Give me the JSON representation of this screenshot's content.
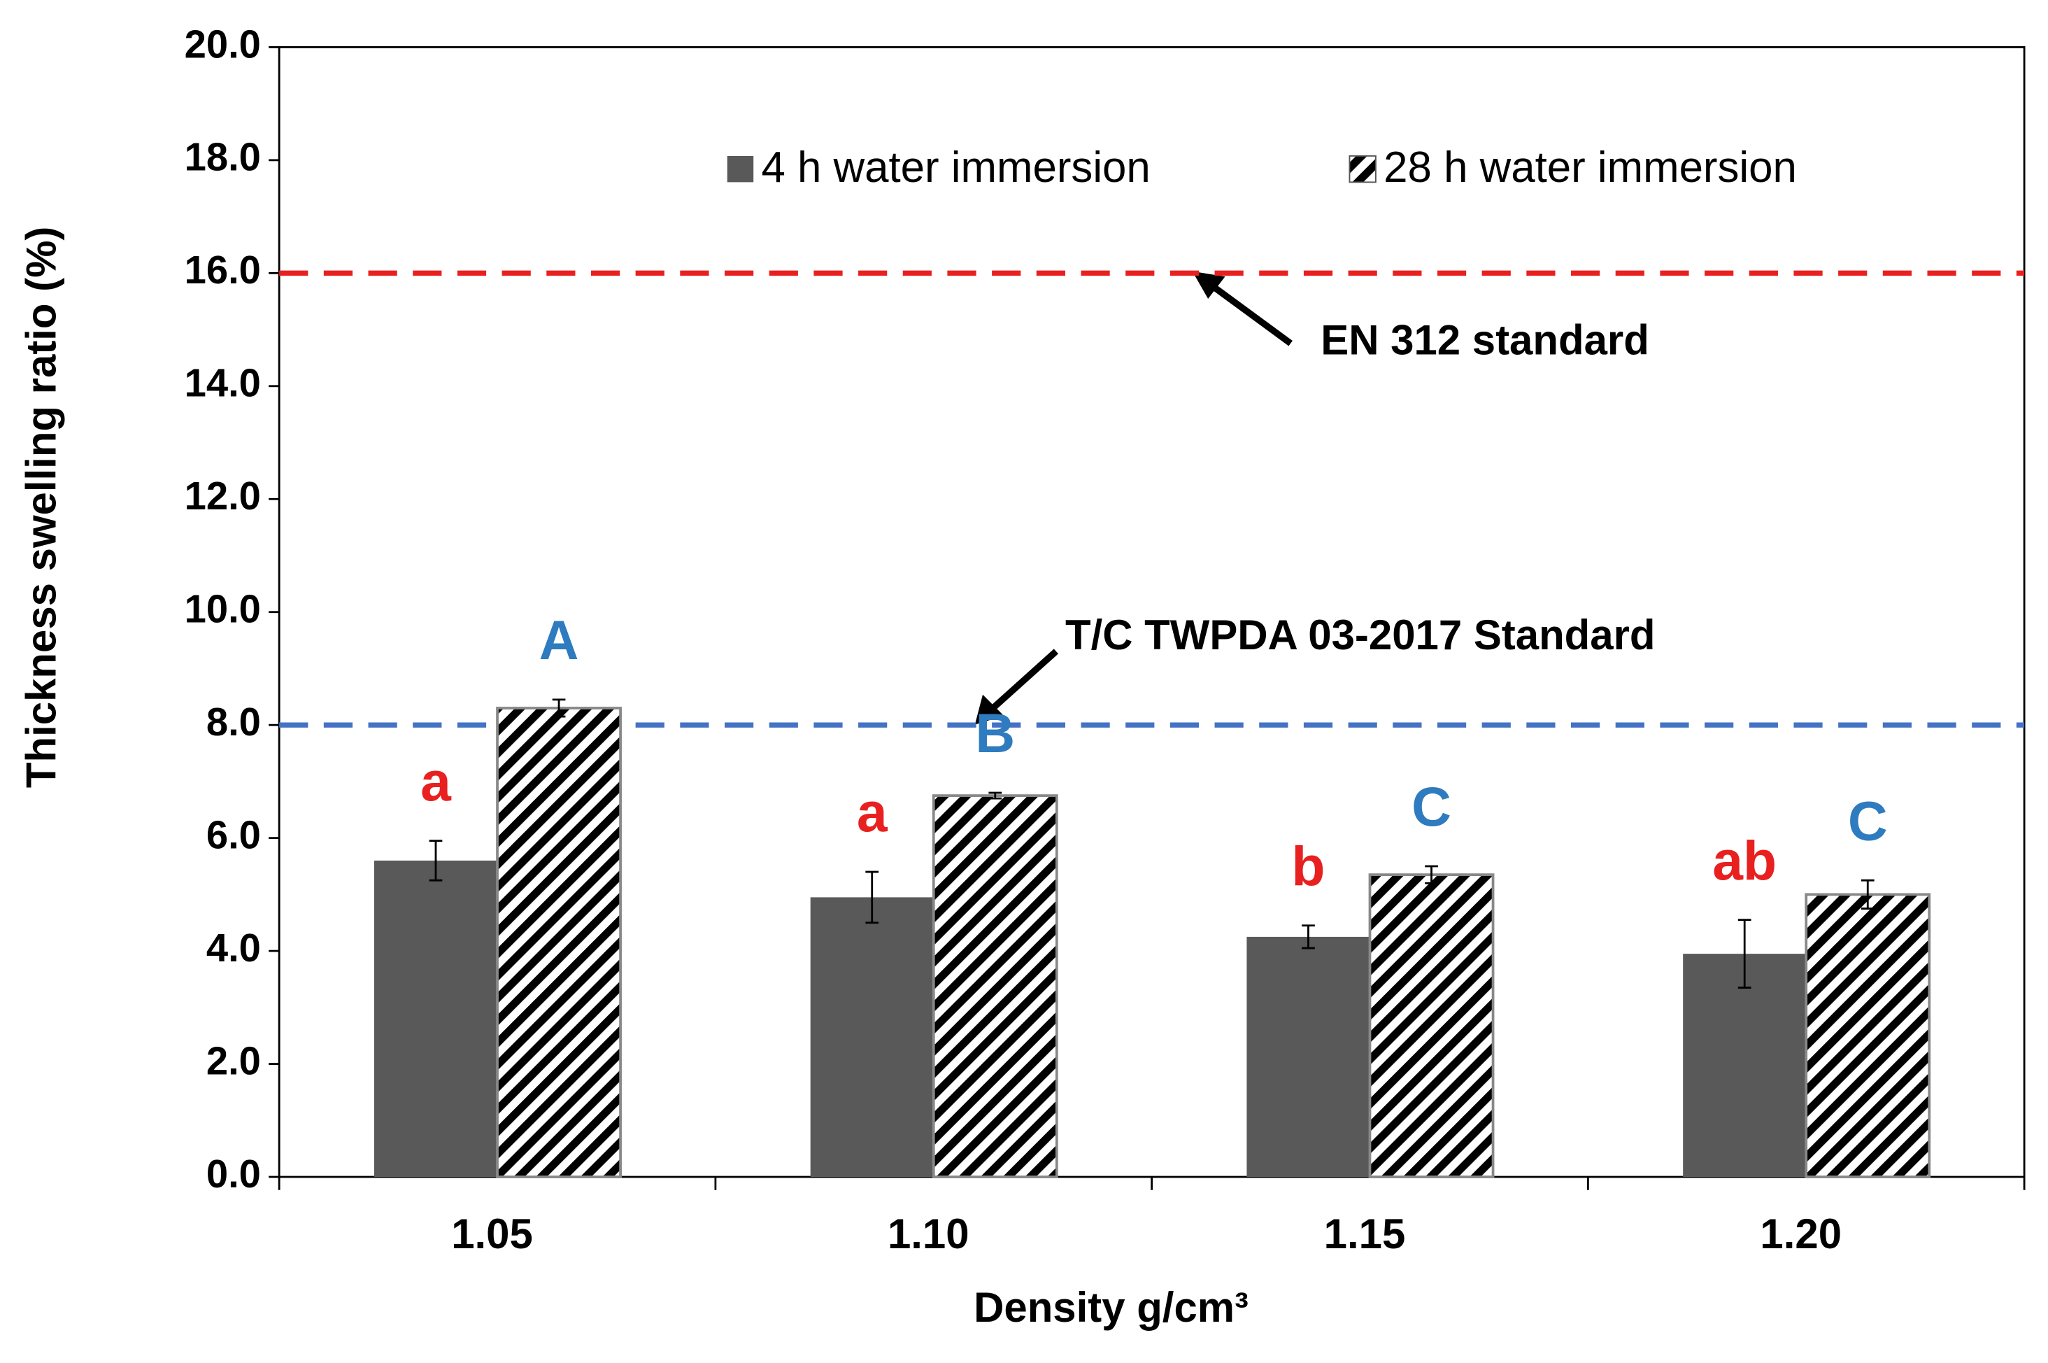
{
  "chart_data": {
    "type": "bar",
    "xlabel": "Density g/cm³",
    "ylabel": "Thickness swelling ratio (%)",
    "categories": [
      "1.05",
      "1.10",
      "1.15",
      "1.20"
    ],
    "series": [
      {
        "name": "4 h water immersion",
        "color": "#595959",
        "pattern": "solid",
        "values": [
          5.6,
          4.95,
          4.25,
          3.95
        ],
        "errors": [
          0.35,
          0.45,
          0.2,
          0.6
        ],
        "group_letters": [
          "a",
          "a",
          "b",
          "ab"
        ],
        "letter_color": "#e8201f"
      },
      {
        "name": "28 h water immersion",
        "color": "#000000",
        "pattern": "hatch",
        "values": [
          8.3,
          6.75,
          5.35,
          5.0
        ],
        "errors": [
          0.15,
          0.05,
          0.15,
          0.25
        ],
        "group_letters": [
          "A",
          "B",
          "C",
          "C"
        ],
        "letter_color": "#2e7bbf"
      }
    ],
    "reference_lines": [
      {
        "value": 16,
        "label": "EN 312 standard",
        "color": "#e8201f"
      },
      {
        "value": 8,
        "label": "T/C TWPDA 03-2017 Standard",
        "color": "#4472c4"
      }
    ],
    "ylim": [
      0,
      20
    ],
    "yticks": [
      {
        "value": 0,
        "label": "0.0"
      },
      {
        "value": 2,
        "label": "2.0"
      },
      {
        "value": 4,
        "label": "4.0"
      },
      {
        "value": 6,
        "label": "6.0"
      },
      {
        "value": 8,
        "label": "8.0"
      },
      {
        "value": 10,
        "label": "10.0"
      },
      {
        "value": 12,
        "label": "12.0"
      },
      {
        "value": 14,
        "label": "14.0"
      },
      {
        "value": 16,
        "label": "16.0"
      },
      {
        "value": 18,
        "label": "18.0"
      },
      {
        "value": 20,
        "label": "20.0"
      }
    ],
    "legend": "top"
  }
}
